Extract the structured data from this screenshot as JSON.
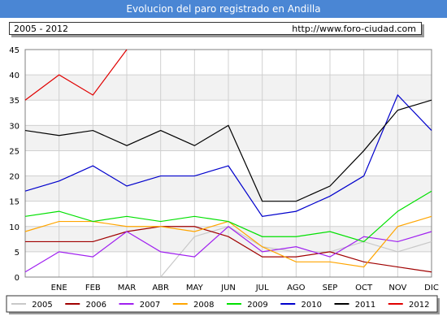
{
  "header": {
    "title": "Evolucion del paro registrado en Andilla",
    "period": "2005 - 2012",
    "url": "http://www.foro-ciudad.com"
  },
  "chart_data": {
    "type": "line",
    "title": "Evolucion del paro registrado en Andilla",
    "xlabel": "",
    "ylabel": "",
    "categories": [
      "",
      "ENE",
      "FEB",
      "MAR",
      "ABR",
      "MAY",
      "JUN",
      "JUL",
      "AGO",
      "SEP",
      "OCT",
      "NOV",
      "DIC"
    ],
    "ylim": [
      0,
      45
    ],
    "yticks": [
      0,
      5,
      10,
      15,
      20,
      25,
      30,
      35,
      40,
      45
    ],
    "grid": true,
    "legend_position": "bottom",
    "series": [
      {
        "name": "2005",
        "color": "#c8c8c8",
        "values": [
          null,
          null,
          null,
          null,
          0,
          8,
          10,
          6,
          5,
          5,
          7,
          5,
          7
        ]
      },
      {
        "name": "2006",
        "color": "#a00000",
        "values": [
          7,
          7,
          7,
          9,
          10,
          10,
          8,
          4,
          4,
          5,
          3,
          2,
          1
        ]
      },
      {
        "name": "2007",
        "color": "#a020f0",
        "values": [
          1,
          5,
          4,
          9,
          5,
          4,
          10,
          5,
          6,
          4,
          8,
          7,
          9
        ]
      },
      {
        "name": "2008",
        "color": "#ffa500",
        "values": [
          9,
          11,
          11,
          10,
          10,
          9,
          11,
          6,
          3,
          3,
          2,
          10,
          12
        ]
      },
      {
        "name": "2009",
        "color": "#00e000",
        "values": [
          12,
          13,
          11,
          12,
          11,
          12,
          11,
          8,
          8,
          9,
          7,
          13,
          17
        ]
      },
      {
        "name": "2010",
        "color": "#0000cc",
        "values": [
          17,
          19,
          22,
          18,
          20,
          20,
          22,
          12,
          13,
          16,
          20,
          36,
          29
        ]
      },
      {
        "name": "2011",
        "color": "#000000",
        "values": [
          29,
          28,
          29,
          26,
          29,
          26,
          30,
          15,
          15,
          18,
          25,
          33,
          35
        ]
      },
      {
        "name": "2012",
        "color": "#e00000",
        "values": [
          35,
          40,
          36,
          45,
          null,
          null,
          null,
          null,
          null,
          null,
          null,
          null,
          null
        ]
      }
    ]
  }
}
